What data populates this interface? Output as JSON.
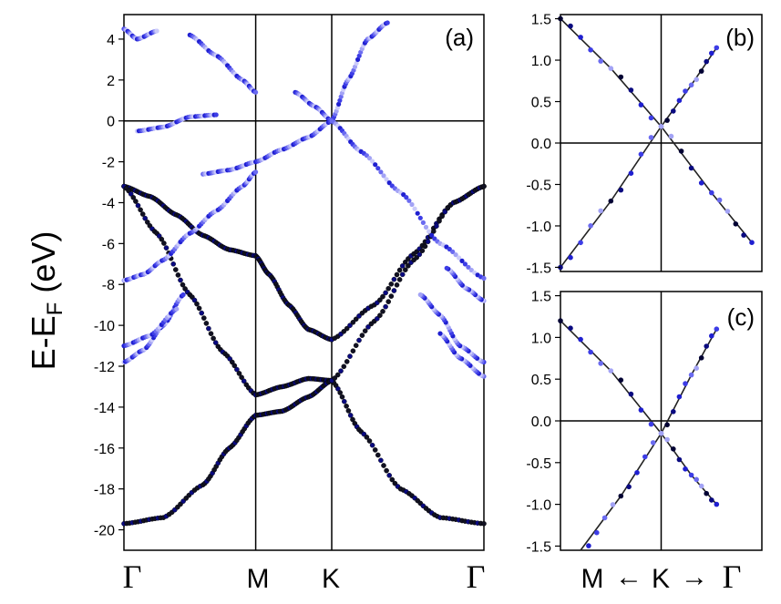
{
  "figure": {
    "ylabel_main": "E-E",
    "ylabel_sub": "F",
    "ylabel_unit": "(eV)"
  },
  "chart_data": [
    {
      "panel": "(a)",
      "type": "scatter",
      "description_axes": "band structure",
      "x_ticks": [
        "Γ",
        "M",
        "K",
        "Γ"
      ],
      "x_tick_positions": [
        0,
        1,
        1.577,
        2.732
      ],
      "xlim": [
        0,
        2.732
      ],
      "ylim": [
        -21,
        5.2
      ],
      "y_ticks": [
        4,
        2,
        0,
        -2,
        -4,
        -6,
        -8,
        -10,
        -12,
        -14,
        -16,
        -18,
        -20
      ],
      "hlines": [
        0
      ],
      "bands": [
        {
          "x": [
            0,
            0.2,
            0.4,
            0.6,
            0.8,
            1.0
          ],
          "y": [
            -3.2,
            -3.7,
            -4.6,
            -5.6,
            -6.3,
            -6.6
          ]
        },
        {
          "x": [
            1.0,
            1.1,
            1.25,
            1.4,
            1.577
          ],
          "y": [
            -6.6,
            -7.5,
            -9.0,
            -10.2,
            -10.7
          ]
        },
        {
          "x": [
            1.577,
            1.9,
            2.2,
            2.5,
            2.732
          ],
          "y": [
            -10.7,
            -9.0,
            -6.5,
            -4.0,
            -3.2
          ]
        },
        {
          "x": [
            0,
            0.25,
            0.5,
            0.75,
            1.0
          ],
          "y": [
            -3.2,
            -5.5,
            -8.5,
            -11.3,
            -13.4
          ]
        },
        {
          "x": [
            1.0,
            1.2,
            1.4,
            1.577
          ],
          "y": [
            -13.4,
            -13.0,
            -12.6,
            -12.7
          ]
        },
        {
          "x": [
            1.577,
            1.8,
            2.1,
            2.4,
            2.732
          ],
          "y": [
            -12.7,
            -15.2,
            -18.0,
            -19.4,
            -19.7
          ]
        },
        {
          "x": [
            0,
            0.3,
            0.6,
            0.8,
            1.0
          ],
          "y": [
            -19.7,
            -19.4,
            -17.8,
            -16.0,
            -14.4
          ]
        },
        {
          "x": [
            1.0,
            1.2,
            1.4,
            1.577
          ],
          "y": [
            -14.4,
            -14.2,
            -13.5,
            -12.7
          ]
        },
        {
          "x": [
            1.577,
            1.9,
            2.2,
            2.5,
            2.732
          ],
          "y": [
            -12.7,
            -9.8,
            -6.8,
            -4.0,
            -3.2
          ]
        },
        {
          "x": [
            1.577,
            1.7,
            1.85,
            2.0
          ],
          "y": [
            0.0,
            2.0,
            4.0,
            4.8
          ]
        },
        {
          "x": [
            1.3,
            1.45,
            1.577
          ],
          "y": [
            1.4,
            0.7,
            0.0
          ]
        },
        {
          "x": [
            1.577,
            1.8,
            2.1,
            2.4,
            2.732
          ],
          "y": [
            0.0,
            -1.5,
            -3.5,
            -6.0,
            -7.7
          ]
        },
        {
          "x": [
            0.6,
            0.8,
            1.0,
            1.2,
            1.4,
            1.577
          ],
          "y": [
            -2.6,
            -2.4,
            -2.0,
            -1.4,
            -0.8,
            0.0
          ]
        },
        {
          "x": [
            0,
            0.15,
            0.3,
            0.5,
            0.7,
            0.9,
            1.0
          ],
          "y": [
            -7.8,
            -7.5,
            -6.8,
            -5.5,
            -4.4,
            -3.2,
            -2.5
          ]
        },
        {
          "x": [
            0,
            0.15,
            0.3,
            0.45
          ],
          "y": [
            -11.8,
            -11.2,
            -10.0,
            -8.5
          ]
        },
        {
          "x": [
            0,
            0.2,
            0.4
          ],
          "y": [
            -11.0,
            -10.5,
            -9.2
          ]
        },
        {
          "x": [
            2.732,
            2.55,
            2.4,
            2.25
          ],
          "y": [
            -11.8,
            -11.0,
            -9.5,
            -8.5
          ]
        },
        {
          "x": [
            2.732,
            2.55,
            2.4
          ],
          "y": [
            -12.5,
            -11.6,
            -10.4
          ]
        },
        {
          "x": [
            2.732,
            2.6,
            2.45
          ],
          "y": [
            -8.8,
            -8.2,
            -7.2
          ]
        },
        {
          "x": [
            0.1,
            0.3,
            0.5,
            0.7
          ],
          "y": [
            -0.5,
            -0.3,
            0.2,
            0.3
          ]
        },
        {
          "x": [
            0.5,
            0.7,
            0.9,
            1.0
          ],
          "y": [
            4.2,
            3.2,
            2.0,
            1.4
          ]
        },
        {
          "x": [
            0,
            0.1,
            0.25
          ],
          "y": [
            4.5,
            4.0,
            4.4
          ]
        }
      ]
    },
    {
      "panel": "(b)",
      "type": "scatter",
      "description_axes": "zoom near K",
      "xlim": [
        -1,
        1
      ],
      "ylim": [
        -1.55,
        1.55
      ],
      "y_ticks": [
        1.5,
        1.0,
        0.5,
        0.0,
        -0.5,
        -1.0,
        -1.5
      ],
      "y_tick_labels": [
        "1.5",
        "1.0",
        "0.5",
        "0.0",
        "-0.5",
        "-1.0",
        "-1.5"
      ],
      "hlines": [
        0.0
      ],
      "vline": 0.0,
      "cone_apex": [
        0.0,
        0.2
      ],
      "branches": [
        {
          "x": [
            -1.0,
            -0.5,
            0.0,
            0.5,
            0.9
          ],
          "y": [
            1.5,
            0.9,
            0.2,
            -0.6,
            -1.2
          ]
        },
        {
          "x": [
            -1.0,
            -0.5,
            0.0,
            0.3,
            0.55
          ],
          "y": [
            -1.5,
            -0.7,
            0.2,
            0.7,
            1.15
          ]
        }
      ]
    },
    {
      "panel": "(c)",
      "type": "scatter",
      "description_axes": "zoom near K",
      "xlim": [
        -1,
        1
      ],
      "ylim": [
        -1.55,
        1.55
      ],
      "y_ticks": [
        1.5,
        1.0,
        0.5,
        0.0,
        -0.5,
        -1.0,
        -1.5
      ],
      "y_tick_labels": [
        "1.5",
        "1.0",
        "0.5",
        "0.0",
        "-0.5",
        "-1.0",
        "-1.5"
      ],
      "x_ticks": [
        "M",
        "K",
        "Γ"
      ],
      "hlines": [
        0.0
      ],
      "vline": 0.0,
      "cone_apex": [
        0.0,
        -0.15
      ],
      "branches": [
        {
          "x": [
            -1.0,
            -0.5,
            0.0,
            0.3,
            0.55
          ],
          "y": [
            1.2,
            0.6,
            -0.15,
            -0.65,
            -1.0
          ]
        },
        {
          "x": [
            -0.8,
            -0.4,
            0.0,
            0.3,
            0.55
          ],
          "y": [
            -1.6,
            -0.9,
            -0.15,
            0.55,
            1.1
          ]
        }
      ]
    }
  ],
  "labels": {
    "panel_a": "(a)",
    "panel_b": "(b)",
    "panel_c": "(c)",
    "gamma": "Γ",
    "m": "M",
    "k": "K",
    "arrow_left": "←",
    "arrow_right": "→"
  }
}
